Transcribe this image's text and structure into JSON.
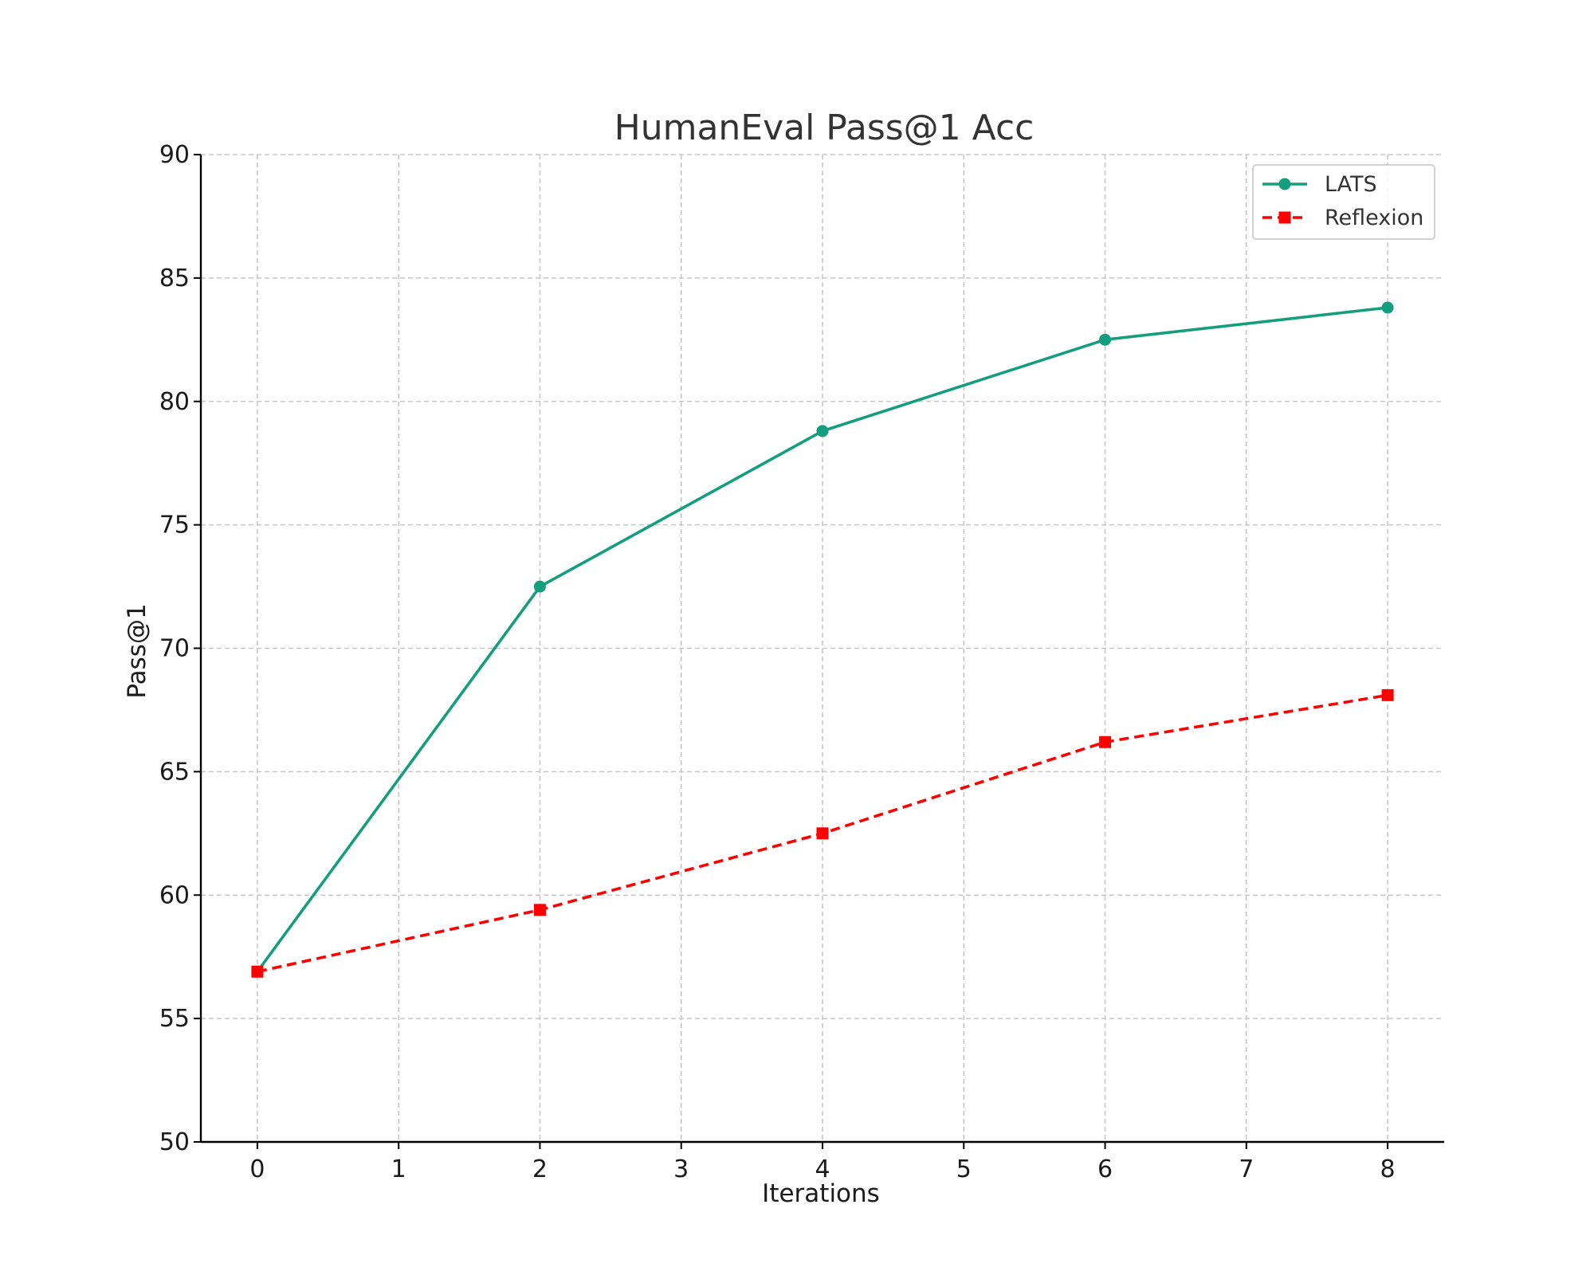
{
  "chart_data": {
    "type": "line",
    "title": "HumanEval Pass@1 Acc",
    "xlabel": "Iterations",
    "ylabel": "Pass@1",
    "xlim": [
      -0.4,
      8.4
    ],
    "ylim": [
      50,
      90
    ],
    "x_ticks": [
      0,
      1,
      2,
      3,
      4,
      5,
      6,
      7,
      8
    ],
    "y_ticks": [
      50,
      55,
      60,
      65,
      70,
      75,
      80,
      85,
      90
    ],
    "grid": true,
    "legend_position": "top-right",
    "series": [
      {
        "name": "LATS",
        "x": [
          0,
          2,
          4,
          6,
          8
        ],
        "values": [
          56.9,
          72.5,
          78.8,
          82.5,
          83.8
        ],
        "color": "#159e7d",
        "line_style": "solid",
        "marker": "circle"
      },
      {
        "name": "Reflexion",
        "x": [
          0,
          2,
          4,
          6,
          8
        ],
        "values": [
          56.9,
          59.4,
          62.5,
          66.2,
          68.1
        ],
        "color": "#ff0000",
        "line_style": "dashed",
        "marker": "square"
      }
    ]
  }
}
